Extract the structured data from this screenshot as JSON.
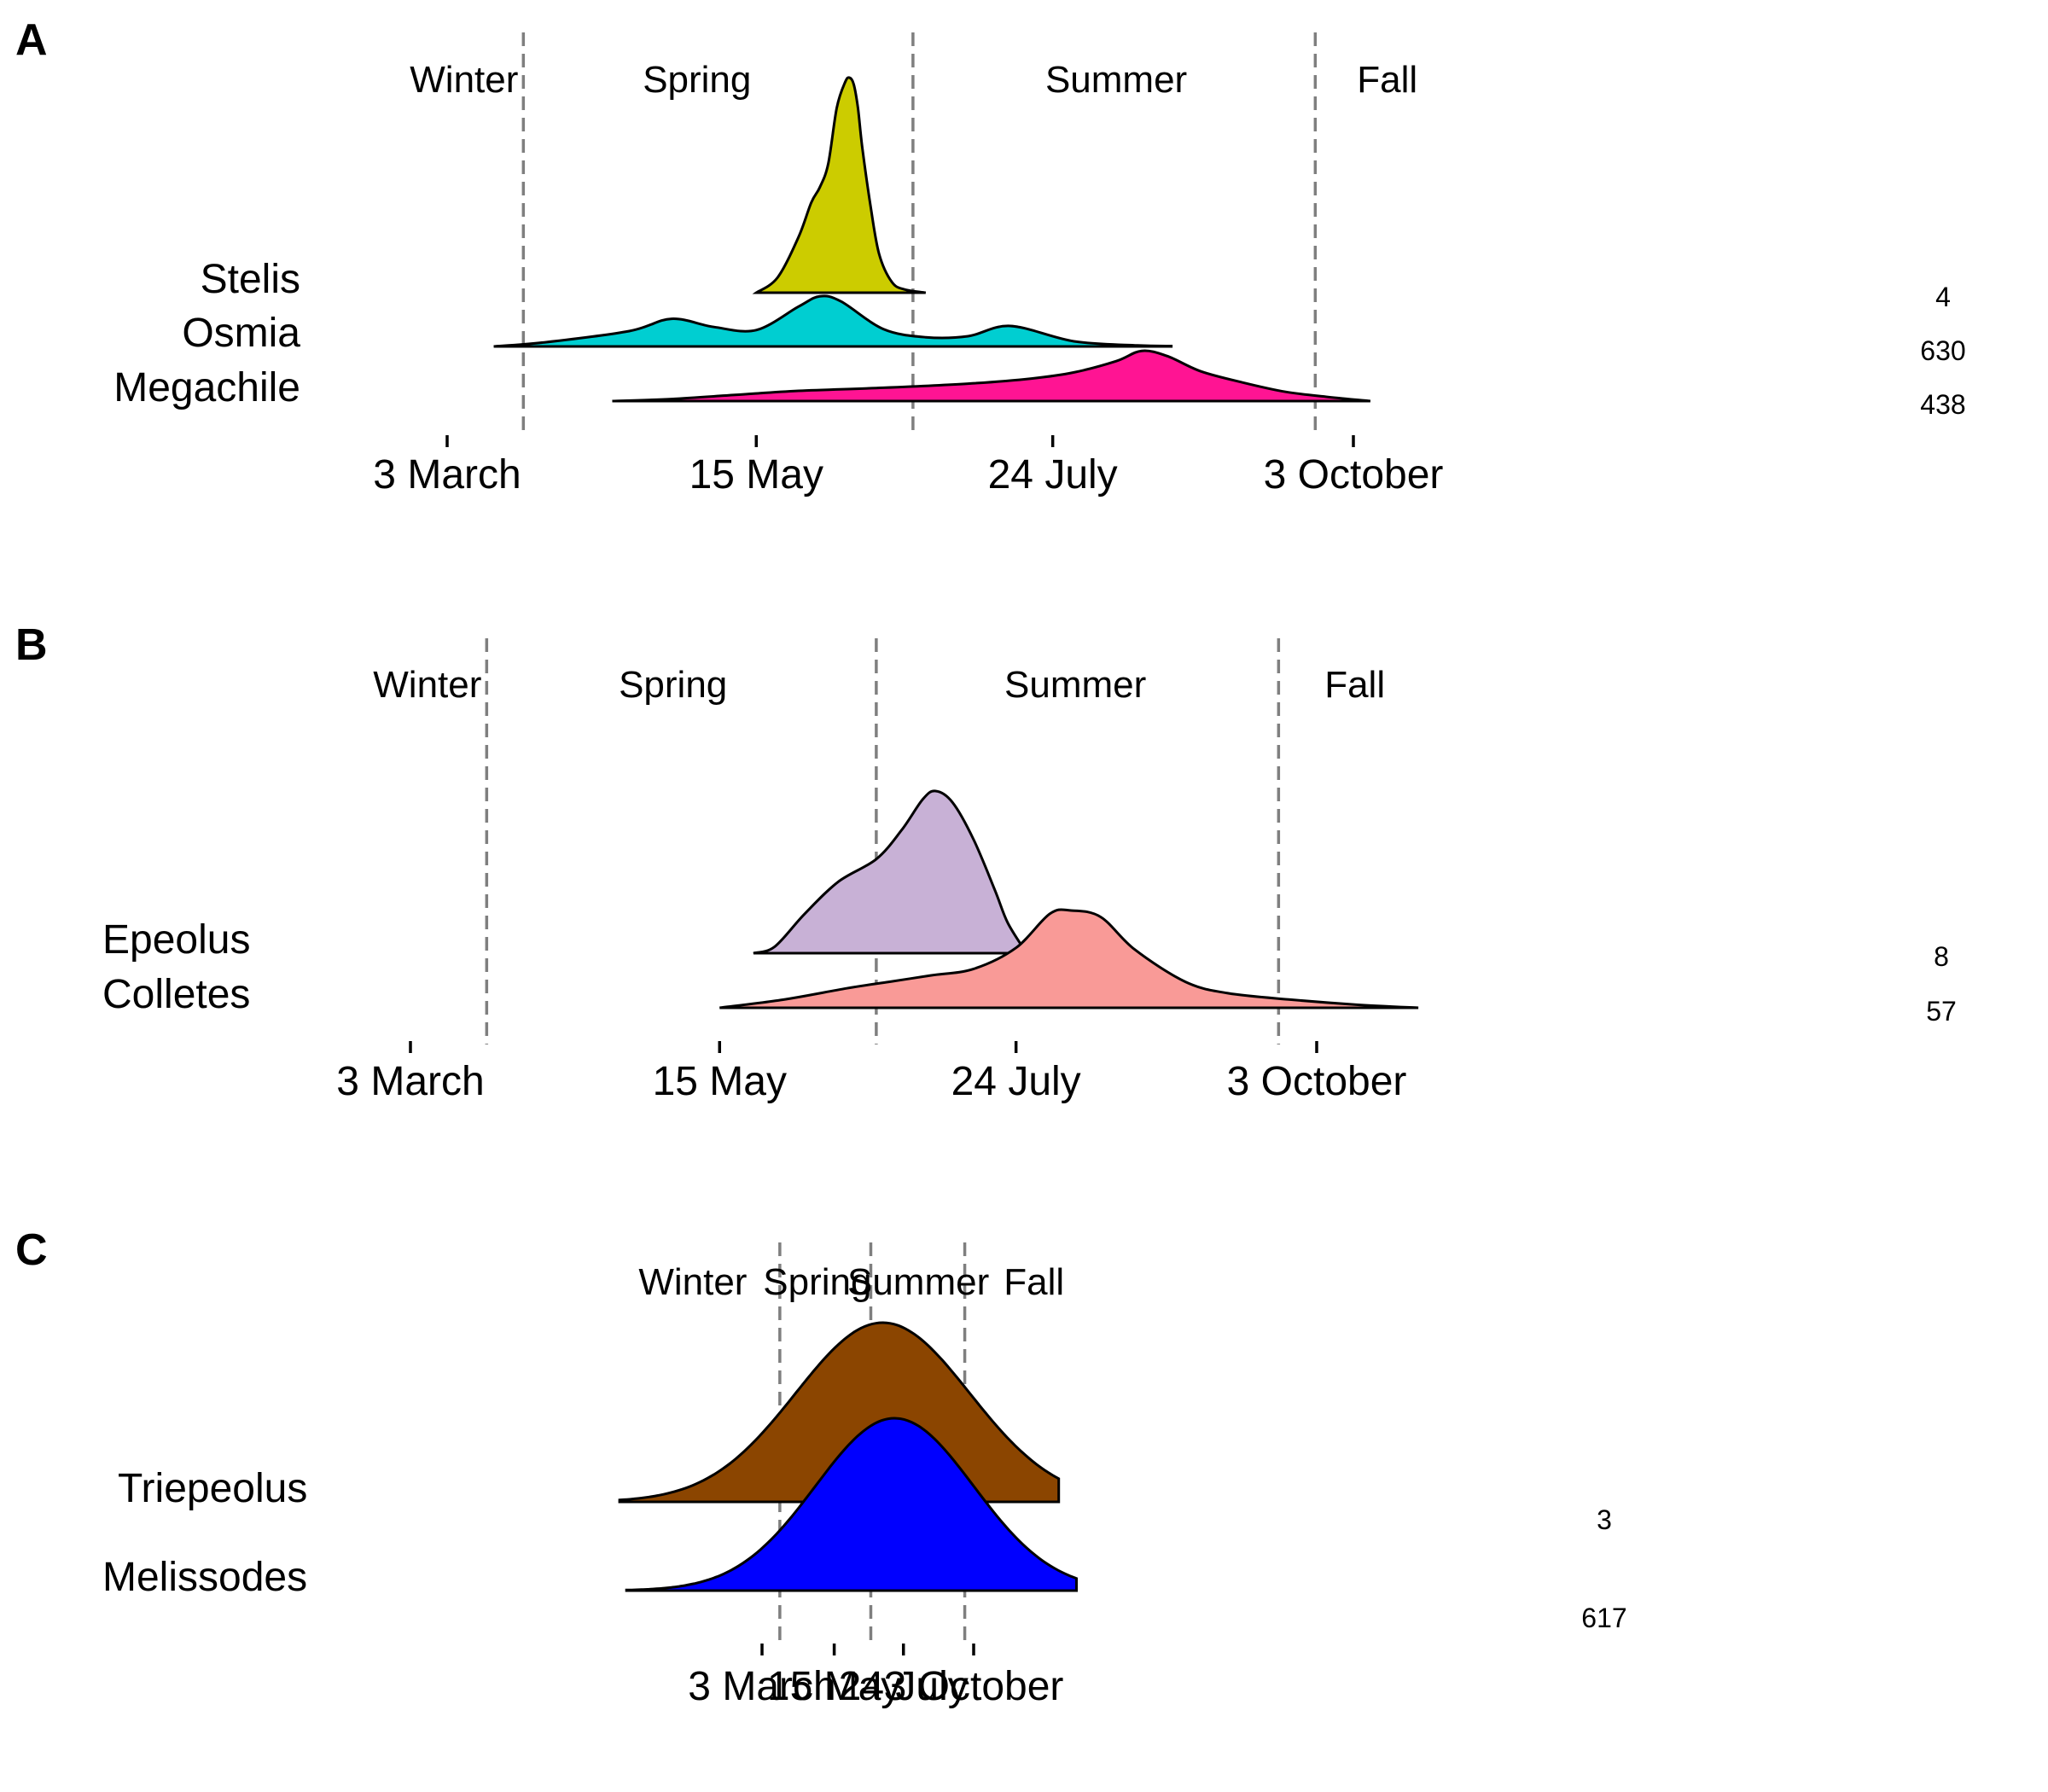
{
  "chart_data": [
    {
      "panel": "A",
      "type": "area",
      "title": "",
      "xlabel": "",
      "ylabel": "",
      "x_unit": "day of year",
      "x_ticks": [
        {
          "day": 62,
          "label": "3 March"
        },
        {
          "day": 135,
          "label": "15 May"
        },
        {
          "day": 205,
          "label": "24 July"
        },
        {
          "day": 276,
          "label": "3 October"
        }
      ],
      "season_boundaries": [
        80,
        172,
        267
      ],
      "seasons": [
        {
          "label": "Winter",
          "day": 66
        },
        {
          "label": "Spring",
          "day": 121
        },
        {
          "label": "Summer",
          "day": 220
        },
        {
          "label": "Fall",
          "day": 284
        }
      ],
      "series": [
        {
          "name": "Stelis",
          "count": "4",
          "color": "#CCCC00",
          "x": [
            135,
            140,
            145,
            148,
            150,
            152,
            154,
            156,
            157,
            158,
            159,
            160,
            162,
            164,
            167,
            170,
            175,
            160
          ],
          "density": [
            0,
            0.07,
            0.26,
            0.42,
            0.49,
            0.6,
            0.86,
            0.98,
            1.0,
            0.97,
            0.86,
            0.68,
            0.4,
            0.18,
            0.05,
            0.015,
            0,
            0
          ]
        },
        {
          "name": "Osmia",
          "count": "630",
          "color": "#00CED1",
          "x": [
            73,
            85,
            105,
            115,
            125,
            135,
            145,
            150,
            155,
            165,
            175,
            185,
            195,
            210,
            225,
            233
          ],
          "density": [
            0,
            0.04,
            0.15,
            0.27,
            0.19,
            0.16,
            0.39,
            0.49,
            0.44,
            0.17,
            0.09,
            0.1,
            0.2,
            0.05,
            0.01,
            0.004
          ]
        },
        {
          "name": "Megachile",
          "count": "438",
          "color": "#FF1493",
          "x": [
            101,
            115,
            130,
            145,
            165,
            185,
            200,
            210,
            220,
            226,
            232,
            240,
            250,
            260,
            270,
            280
          ],
          "density": [
            0,
            0.02,
            0.06,
            0.1,
            0.13,
            0.17,
            0.22,
            0.28,
            0.39,
            0.49,
            0.44,
            0.29,
            0.18,
            0.09,
            0.04,
            0
          ]
        }
      ]
    },
    {
      "panel": "B",
      "type": "area",
      "title": "",
      "xlabel": "",
      "ylabel": "",
      "x_unit": "day of year",
      "x_ticks": [
        {
          "day": 62,
          "label": "3 March"
        },
        {
          "day": 135,
          "label": "15 May"
        },
        {
          "day": 205,
          "label": "24 July"
        },
        {
          "day": 276,
          "label": "3 October"
        }
      ],
      "season_boundaries": [
        80,
        172,
        267
      ],
      "seasons": [
        {
          "label": "Winter",
          "day": 66
        },
        {
          "label": "Spring",
          "day": 124
        },
        {
          "label": "Summer",
          "day": 219
        },
        {
          "label": "Fall",
          "day": 285
        }
      ],
      "series": [
        {
          "name": "Epeolus",
          "count": "8",
          "color": "#C8B1D6",
          "x": [
            143,
            148,
            155,
            163,
            172,
            178,
            183,
            186,
            190,
            195,
            200,
            203,
            207
          ],
          "density": [
            0,
            0.04,
            0.24,
            0.44,
            0.58,
            0.76,
            0.95,
            1.0,
            0.93,
            0.7,
            0.39,
            0.19,
            0.02
          ]
        },
        {
          "name": "Colletes",
          "count": "57",
          "color": "#F99A97",
          "x": [
            135,
            150,
            165,
            175,
            185,
            195,
            205,
            213,
            218,
            225,
            233,
            245,
            255,
            270,
            285,
            300
          ],
          "density": [
            0,
            0.05,
            0.12,
            0.16,
            0.2,
            0.24,
            0.37,
            0.58,
            0.6,
            0.56,
            0.36,
            0.16,
            0.09,
            0.05,
            0.02,
            0
          ]
        }
      ]
    },
    {
      "panel": "C",
      "type": "area",
      "title": "",
      "xlabel": "",
      "ylabel": "",
      "x_unit": "day of year",
      "x_ticks": [
        {
          "day": 62,
          "label": "3 March"
        },
        {
          "day": 135,
          "label": "15 May"
        },
        {
          "day": 205,
          "label": "24 July"
        },
        {
          "day": 276,
          "label": "3 October"
        }
      ],
      "season_boundaries": [
        80,
        172,
        267
      ],
      "seasons": [
        {
          "label": "Winter",
          "day": -8
        },
        {
          "label": "Spring",
          "day": 118
        },
        {
          "label": "Summer",
          "day": 220
        },
        {
          "label": "Fall",
          "day": 337
        }
      ],
      "series": [
        {
          "name": "Triepeolus",
          "count": "3",
          "color": "#8B4500",
          "mean": 184,
          "sd": 88,
          "x_range": [
            -82,
            362
          ]
        },
        {
          "name": "Melissodes",
          "count": "617",
          "color": "#0000FF",
          "mean": 196,
          "sd": 80,
          "x_range": [
            -75,
            380
          ]
        }
      ]
    }
  ]
}
